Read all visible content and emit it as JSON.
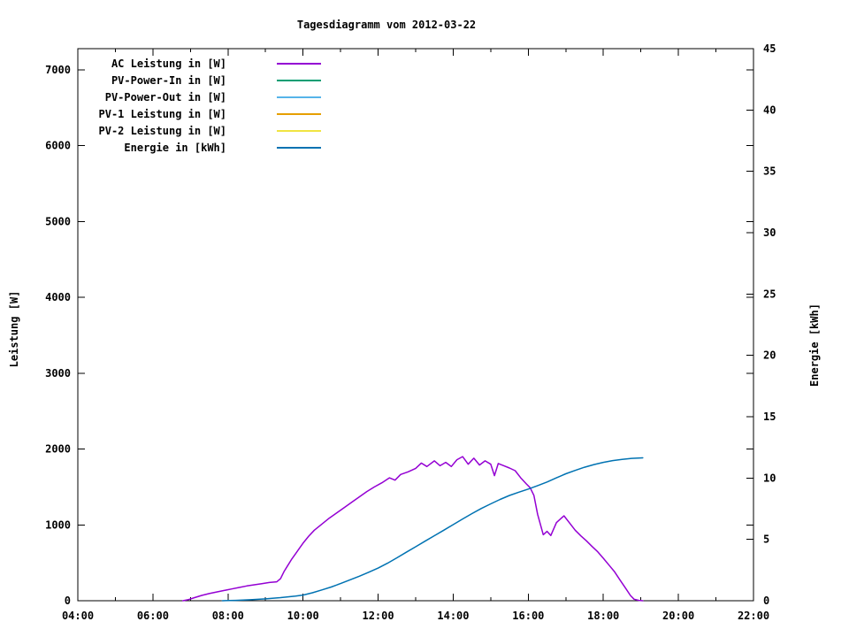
{
  "chart_data": {
    "type": "line",
    "title": "Tagesdiagramm vom 2012-03-22",
    "x_axis": {
      "unit": "time-of-day",
      "tick_labels": [
        "04:00",
        "06:00",
        "08:00",
        "10:00",
        "12:00",
        "14:00",
        "16:00",
        "18:00",
        "20:00",
        "22:00"
      ],
      "range_hours": [
        4,
        22
      ],
      "minor_tick_every_hours": 1,
      "major_tick_every_hours": 2
    },
    "y_axis": {
      "label": "Leistung [W]",
      "tick_values": [
        0,
        1000,
        2000,
        3000,
        4000,
        5000,
        6000,
        7000
      ],
      "range": [
        0,
        7280
      ]
    },
    "y2_axis": {
      "label": "Energie [kWh]",
      "tick_values": [
        0,
        5,
        10,
        15,
        20,
        25,
        30,
        35,
        40,
        45
      ],
      "range": [
        0,
        45
      ]
    },
    "grid": "off",
    "legend_position": "top-left-inside",
    "series": [
      {
        "name": "AC Leistung in [W]",
        "color": "#9400d3",
        "axis": "y",
        "points": [
          [
            6.8,
            0
          ],
          [
            6.95,
            15
          ],
          [
            7.1,
            40
          ],
          [
            7.3,
            70
          ],
          [
            7.5,
            95
          ],
          [
            7.7,
            115
          ],
          [
            7.9,
            135
          ],
          [
            8.1,
            155
          ],
          [
            8.3,
            175
          ],
          [
            8.5,
            195
          ],
          [
            8.7,
            210
          ],
          [
            8.9,
            225
          ],
          [
            9.1,
            240
          ],
          [
            9.3,
            250
          ],
          [
            9.4,
            290
          ],
          [
            9.5,
            390
          ],
          [
            9.6,
            470
          ],
          [
            9.7,
            550
          ],
          [
            9.8,
            620
          ],
          [
            9.9,
            690
          ],
          [
            10.0,
            760
          ],
          [
            10.15,
            850
          ],
          [
            10.3,
            930
          ],
          [
            10.5,
            1010
          ],
          [
            10.7,
            1090
          ],
          [
            10.9,
            1160
          ],
          [
            11.1,
            1230
          ],
          [
            11.3,
            1300
          ],
          [
            11.5,
            1370
          ],
          [
            11.7,
            1440
          ],
          [
            11.9,
            1500
          ],
          [
            12.1,
            1555
          ],
          [
            12.3,
            1620
          ],
          [
            12.45,
            1590
          ],
          [
            12.6,
            1665
          ],
          [
            12.8,
            1700
          ],
          [
            13.0,
            1745
          ],
          [
            13.15,
            1815
          ],
          [
            13.3,
            1770
          ],
          [
            13.5,
            1845
          ],
          [
            13.65,
            1780
          ],
          [
            13.8,
            1825
          ],
          [
            13.95,
            1770
          ],
          [
            14.1,
            1860
          ],
          [
            14.25,
            1900
          ],
          [
            14.4,
            1800
          ],
          [
            14.55,
            1880
          ],
          [
            14.7,
            1790
          ],
          [
            14.85,
            1845
          ],
          [
            15.0,
            1800
          ],
          [
            15.1,
            1650
          ],
          [
            15.2,
            1810
          ],
          [
            15.35,
            1780
          ],
          [
            15.5,
            1750
          ],
          [
            15.65,
            1715
          ],
          [
            15.8,
            1620
          ],
          [
            15.95,
            1540
          ],
          [
            16.05,
            1490
          ],
          [
            16.15,
            1390
          ],
          [
            16.25,
            1140
          ],
          [
            16.4,
            870
          ],
          [
            16.5,
            915
          ],
          [
            16.6,
            860
          ],
          [
            16.75,
            1030
          ],
          [
            16.95,
            1120
          ],
          [
            17.1,
            1025
          ],
          [
            17.25,
            930
          ],
          [
            17.4,
            855
          ],
          [
            17.55,
            790
          ],
          [
            17.7,
            715
          ],
          [
            17.85,
            645
          ],
          [
            18.0,
            560
          ],
          [
            18.15,
            470
          ],
          [
            18.3,
            380
          ],
          [
            18.45,
            270
          ],
          [
            18.6,
            160
          ],
          [
            18.72,
            70
          ],
          [
            18.82,
            20
          ],
          [
            18.95,
            5
          ],
          [
            19.05,
            0
          ]
        ]
      },
      {
        "name": "PV-Power-In in [W]",
        "color": "#009e73",
        "axis": "y",
        "points": []
      },
      {
        "name": "PV-Power-Out in [W]",
        "color": "#56b4e9",
        "axis": "y",
        "points": []
      },
      {
        "name": "PV-1 Leistung in [W]",
        "color": "#e69f00",
        "axis": "y",
        "points": []
      },
      {
        "name": "PV-2 Leistung in [W]",
        "color": "#f0e442",
        "axis": "y",
        "points": []
      },
      {
        "name": "Energie in [kWh]",
        "color": "#0072b2",
        "axis": "y2",
        "points": [
          [
            7.85,
            0
          ],
          [
            8.2,
            0.03
          ],
          [
            8.6,
            0.08
          ],
          [
            9.0,
            0.15
          ],
          [
            9.4,
            0.25
          ],
          [
            9.8,
            0.38
          ],
          [
            10.0,
            0.46
          ],
          [
            10.25,
            0.65
          ],
          [
            10.5,
            0.88
          ],
          [
            10.75,
            1.12
          ],
          [
            11.0,
            1.4
          ],
          [
            11.25,
            1.7
          ],
          [
            11.5,
            2.0
          ],
          [
            11.75,
            2.32
          ],
          [
            12.0,
            2.66
          ],
          [
            12.25,
            3.06
          ],
          [
            12.5,
            3.5
          ],
          [
            12.75,
            3.95
          ],
          [
            13.0,
            4.4
          ],
          [
            13.25,
            4.85
          ],
          [
            13.5,
            5.3
          ],
          [
            13.75,
            5.75
          ],
          [
            14.0,
            6.2
          ],
          [
            14.25,
            6.66
          ],
          [
            14.5,
            7.1
          ],
          [
            14.75,
            7.52
          ],
          [
            15.0,
            7.9
          ],
          [
            15.25,
            8.26
          ],
          [
            15.5,
            8.58
          ],
          [
            15.75,
            8.85
          ],
          [
            16.0,
            9.1
          ],
          [
            16.25,
            9.38
          ],
          [
            16.5,
            9.68
          ],
          [
            16.75,
            10.02
          ],
          [
            17.0,
            10.35
          ],
          [
            17.25,
            10.62
          ],
          [
            17.5,
            10.88
          ],
          [
            17.75,
            11.1
          ],
          [
            18.0,
            11.28
          ],
          [
            18.25,
            11.42
          ],
          [
            18.5,
            11.52
          ],
          [
            18.75,
            11.6
          ],
          [
            19.05,
            11.65
          ]
        ]
      }
    ]
  }
}
